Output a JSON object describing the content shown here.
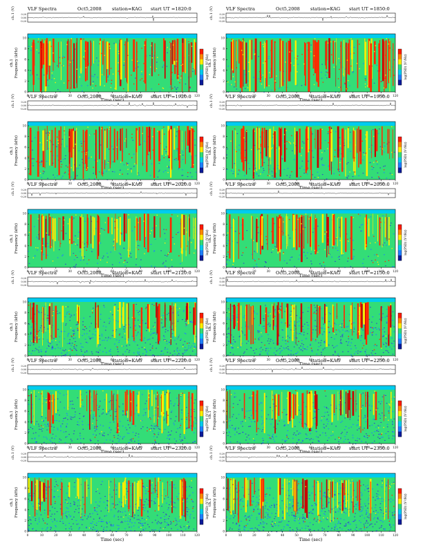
{
  "panel_common": {
    "title": "VLF Spectra",
    "station": "station=KAG",
    "start_prefix": "start  UT  =",
    "waveform_ylabel": "ch.1 (V)",
    "waveform_ticks": [
      "0.20",
      "0.00",
      "-0.20"
    ],
    "spec_ylabel_channel": "ch.1",
    "spec_ylabel": "Frequency (kHz)",
    "spec_yticks": [
      "0",
      "2",
      "4",
      "6",
      "8",
      "10"
    ],
    "colorbar_label": "log(PSD) (V²/Hz)",
    "xlabel": "Time (sec)",
    "xticks": [
      "0",
      "10",
      "20",
      "30",
      "40",
      "50",
      "60",
      "70",
      "80",
      "90",
      "100",
      "110",
      "120"
    ]
  },
  "colors": {
    "spectrogram_base": "#33dd77",
    "noise_low": "#1e7fff",
    "intense": "#ff2a00",
    "mid": "#ffee00",
    "band_top": "#00ccee"
  },
  "chart_data": [
    {
      "type": "heatmap",
      "date": "Oct5,2008",
      "start_ut": "1820:0",
      "xlim": [
        0,
        120
      ],
      "ylim": [
        0,
        10
      ],
      "intensity": 0.9,
      "blue_noise": 0.1
    },
    {
      "type": "heatmap",
      "date": "Oct5,2008",
      "start_ut": "1850:0",
      "xlim": [
        0,
        120
      ],
      "ylim": [
        0,
        10
      ],
      "intensity": 0.9,
      "blue_noise": 0.1
    },
    {
      "type": "heatmap",
      "date": "Oct5,2008",
      "start_ut": "1920:0",
      "xlim": [
        0,
        120
      ],
      "ylim": [
        0,
        10
      ],
      "intensity": 0.75,
      "blue_noise": 0.2
    },
    {
      "type": "heatmap",
      "date": "Oct5,2008",
      "start_ut": "1950:0",
      "xlim": [
        0,
        120
      ],
      "ylim": [
        0,
        10
      ],
      "intensity": 0.75,
      "blue_noise": 0.2
    },
    {
      "type": "heatmap",
      "date": "Oct5,2008",
      "start_ut": "2020:0",
      "xlim": [
        0,
        120
      ],
      "ylim": [
        0,
        10
      ],
      "intensity": 0.6,
      "blue_noise": 0.15
    },
    {
      "type": "heatmap",
      "date": "Oct5,2008",
      "start_ut": "2050:0",
      "xlim": [
        0,
        120
      ],
      "ylim": [
        0,
        10
      ],
      "intensity": 0.6,
      "blue_noise": 0.15
    },
    {
      "type": "heatmap",
      "date": "Oct5,2008",
      "start_ut": "2120:0",
      "xlim": [
        0,
        120
      ],
      "ylim": [
        0,
        10
      ],
      "intensity": 0.45,
      "blue_noise": 0.55
    },
    {
      "type": "heatmap",
      "date": "Oct5,2008",
      "start_ut": "2150:0",
      "xlim": [
        0,
        120
      ],
      "ylim": [
        0,
        10
      ],
      "intensity": 0.45,
      "blue_noise": 0.55
    },
    {
      "type": "heatmap",
      "date": "Oct5,2008",
      "start_ut": "2220:0",
      "xlim": [
        0,
        120
      ],
      "ylim": [
        0,
        10
      ],
      "intensity": 0.4,
      "blue_noise": 0.5
    },
    {
      "type": "heatmap",
      "date": "Oct5,2008",
      "start_ut": "2250:0",
      "xlim": [
        0,
        120
      ],
      "ylim": [
        0,
        10
      ],
      "intensity": 0.4,
      "blue_noise": 0.45
    },
    {
      "type": "heatmap",
      "date": "Oct5,2008",
      "start_ut": "2320:0",
      "xlim": [
        0,
        120
      ],
      "ylim": [
        0,
        10
      ],
      "intensity": 0.4,
      "blue_noise": 0.6
    },
    {
      "type": "heatmap",
      "date": "Oct5,2008",
      "start_ut": "2350:0",
      "xlim": [
        0,
        120
      ],
      "ylim": [
        0,
        10
      ],
      "intensity": 0.45,
      "blue_noise": 0.7
    }
  ]
}
